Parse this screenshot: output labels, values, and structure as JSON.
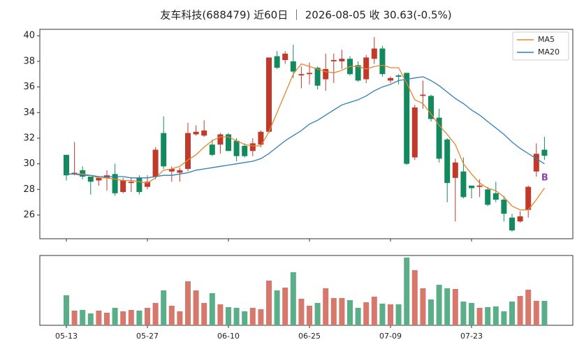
{
  "chart_data": {
    "type": "candlestick",
    "title": "友车科技(688479) 近60日 ｜ 2026-08-05 收 30.63(-0.5%)",
    "categories": [
      "05-13",
      null,
      null,
      null,
      null,
      null,
      null,
      null,
      null,
      null,
      "05-27",
      null,
      null,
      null,
      null,
      null,
      null,
      null,
      null,
      null,
      "06-10",
      null,
      null,
      null,
      null,
      null,
      null,
      null,
      null,
      null,
      "06-25",
      null,
      null,
      null,
      null,
      null,
      null,
      null,
      null,
      null,
      "07-09",
      null,
      null,
      null,
      null,
      null,
      null,
      null,
      null,
      null,
      "07-23",
      null,
      null,
      null,
      null,
      null,
      null,
      null,
      null,
      null
    ],
    "open": [
      30.7,
      29.2,
      29.5,
      29.0,
      28.7,
      28.9,
      29.2,
      27.8,
      28.5,
      28.9,
      28.2,
      29.0,
      32.4,
      29.4,
      29.3,
      29.6,
      32.3,
      32.2,
      31.5,
      31.5,
      32.3,
      31.8,
      31.4,
      31.0,
      31.5,
      32.5,
      38.4,
      38.1,
      38.0,
      36.9,
      37.0,
      37.5,
      36.6,
      38.0,
      38.0,
      38.2,
      37.7,
      36.6,
      38.2,
      39.0,
      36.5,
      36.9,
      37.1,
      30.5,
      35.3,
      35.3,
      33.6,
      31.9,
      28.9,
      29.4,
      28.3,
      28.2,
      28.0,
      27.7,
      27.2,
      25.8,
      25.5,
      26.4,
      29.4,
      31.1
    ],
    "high": [
      30.7,
      31.7,
      29.8,
      29.0,
      29.0,
      29.5,
      30.0,
      28.9,
      28.9,
      29.1,
      29.1,
      31.3,
      33.7,
      29.8,
      29.7,
      33.2,
      33.0,
      33.4,
      31.9,
      32.4,
      32.4,
      32.0,
      31.6,
      32.0,
      32.6,
      38.3,
      38.8,
      38.8,
      39.3,
      37.6,
      37.9,
      37.6,
      38.6,
      38.6,
      38.9,
      38.4,
      38.0,
      38.5,
      39.9,
      39.2,
      36.8,
      37.0,
      37.1,
      34.6,
      36.5,
      35.4,
      34.3,
      32.0,
      30.4,
      30.5,
      28.3,
      28.8,
      28.2,
      28.6,
      27.5,
      26.1,
      26.3,
      28.3,
      31.6,
      32.1
    ],
    "low": [
      28.7,
      29.1,
      28.8,
      27.6,
      28.3,
      27.9,
      27.5,
      27.7,
      27.8,
      27.6,
      28.0,
      28.8,
      29.6,
      28.6,
      28.6,
      29.4,
      32.2,
      32.1,
      30.6,
      30.8,
      31.0,
      30.2,
      30.5,
      30.6,
      31.3,
      32.4,
      37.4,
      37.8,
      36.7,
      35.9,
      36.2,
      35.8,
      35.7,
      36.3,
      37.4,
      36.9,
      36.4,
      36.3,
      37.8,
      36.8,
      36.3,
      36.2,
      29.9,
      30.3,
      34.3,
      33.3,
      30.1,
      27.0,
      25.5,
      27.3,
      27.3,
      27.4,
      26.7,
      27.0,
      25.5,
      24.7,
      25.4,
      25.8,
      29.0,
      30.3
    ],
    "close": [
      29.1,
      29.3,
      29.0,
      28.6,
      28.9,
      29.1,
      27.7,
      28.7,
      28.6,
      27.8,
      28.6,
      31.1,
      29.8,
      29.6,
      29.5,
      32.4,
      32.5,
      32.6,
      30.7,
      32.3,
      31.0,
      30.6,
      30.6,
      31.6,
      32.5,
      38.3,
      37.5,
      38.6,
      37.2,
      37.0,
      37.1,
      36.1,
      37.4,
      38.1,
      38.2,
      37.0,
      36.5,
      38.3,
      39.0,
      37.0,
      36.7,
      36.8,
      30.0,
      34.4,
      35.4,
      33.5,
      30.4,
      28.5,
      30.1,
      27.4,
      28.1,
      28.3,
      26.8,
      27.2,
      26.1,
      24.8,
      25.9,
      28.2,
      30.78,
      30.63
    ],
    "up_color": "#c0392b",
    "down_color": "#138a5e",
    "series": [
      {
        "name": "MA5",
        "color": "#e8852c",
        "values": [
          29.2,
          29.2,
          29.2,
          29.1,
          28.9,
          28.9,
          28.8,
          28.7,
          28.7,
          28.6,
          28.5,
          28.9,
          29.5,
          29.6,
          29.8,
          30.3,
          30.7,
          31.3,
          31.8,
          32.1,
          32.1,
          31.8,
          31.5,
          31.4,
          31.4,
          32.5,
          34.0,
          35.5,
          37.0,
          37.8,
          37.6,
          37.4,
          37.2,
          37.1,
          37.3,
          37.6,
          37.6,
          37.4,
          37.6,
          37.7,
          37.5,
          37.5,
          36.3,
          35.0,
          34.7,
          33.9,
          33.0,
          32.3,
          31.5,
          30.0,
          29.2,
          28.5,
          28.1,
          27.9,
          27.4,
          26.7,
          26.4,
          26.4,
          27.2,
          28.1
        ]
      },
      {
        "name": "MA20",
        "color": "#2f7fb8",
        "values": [
          29.2,
          29.2,
          29.1,
          29.1,
          29.0,
          29.0,
          29.0,
          29.0,
          28.9,
          28.9,
          28.9,
          29.0,
          29.1,
          29.1,
          29.2,
          29.3,
          29.5,
          29.6,
          29.7,
          29.8,
          29.9,
          30.0,
          30.1,
          30.2,
          30.4,
          30.8,
          31.3,
          31.8,
          32.2,
          32.6,
          33.1,
          33.4,
          33.8,
          34.2,
          34.6,
          34.8,
          35.0,
          35.3,
          35.7,
          36.0,
          36.2,
          36.5,
          36.6,
          36.7,
          36.8,
          36.5,
          36.1,
          35.6,
          35.1,
          34.7,
          34.2,
          33.8,
          33.3,
          32.8,
          32.3,
          31.7,
          31.2,
          30.8,
          30.4,
          30.0
        ]
      }
    ],
    "ylim": [
      24.15,
      40.5
    ],
    "yticks": [
      26,
      28,
      30,
      32,
      34,
      36,
      38,
      40
    ],
    "legend": "upper right",
    "annotations": [
      {
        "text": "B",
        "color": "#8e44ad"
      }
    ],
    "volume": {
      "values": [
        43,
        21,
        22,
        17,
        21,
        18,
        25,
        20,
        22,
        21,
        25,
        32,
        50,
        28,
        20,
        63,
        50,
        32,
        46,
        30,
        26,
        25,
        20,
        25,
        23,
        64,
        50,
        54,
        76,
        38,
        28,
        32,
        53,
        39,
        39,
        36,
        25,
        33,
        41,
        31,
        30,
        30,
        97,
        79,
        53,
        37,
        58,
        53,
        52,
        34,
        32,
        25,
        26,
        27,
        20,
        34,
        42,
        51,
        35,
        35
      ],
      "ylim": [
        0,
        100
      ],
      "up_color": "#d6786c",
      "down_color": "#5aae88"
    }
  }
}
